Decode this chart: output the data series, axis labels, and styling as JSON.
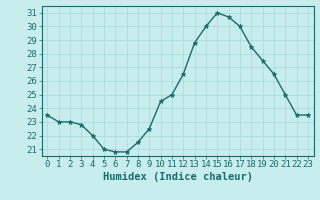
{
  "x": [
    0,
    1,
    2,
    3,
    4,
    5,
    6,
    7,
    8,
    9,
    10,
    11,
    12,
    13,
    14,
    15,
    16,
    17,
    18,
    19,
    20,
    21,
    22,
    23
  ],
  "y": [
    23.5,
    23.0,
    23.0,
    22.8,
    22.0,
    21.0,
    20.8,
    20.8,
    21.5,
    22.5,
    24.5,
    25.0,
    26.5,
    28.8,
    30.0,
    31.0,
    30.7,
    30.0,
    28.5,
    27.5,
    26.5,
    25.0,
    23.5,
    23.5
  ],
  "xlabel": "Humidex (Indice chaleur)",
  "xlim": [
    -0.5,
    23.5
  ],
  "ylim": [
    20.5,
    31.5
  ],
  "yticks": [
    21,
    22,
    23,
    24,
    25,
    26,
    27,
    28,
    29,
    30,
    31
  ],
  "xticks": [
    0,
    1,
    2,
    3,
    4,
    5,
    6,
    7,
    8,
    9,
    10,
    11,
    12,
    13,
    14,
    15,
    16,
    17,
    18,
    19,
    20,
    21,
    22,
    23
  ],
  "line_color": "#1a6b6b",
  "marker": "*",
  "marker_size": 3.5,
  "bg_color": "#c8eded",
  "grid_color": "#a8d8d8",
  "axis_color": "#1a6b6b",
  "tick_label_color": "#1a6b6b",
  "xlabel_color": "#1a6b6b",
  "xlabel_fontsize": 7.5,
  "tick_fontsize": 6.5,
  "line_width": 1.0
}
